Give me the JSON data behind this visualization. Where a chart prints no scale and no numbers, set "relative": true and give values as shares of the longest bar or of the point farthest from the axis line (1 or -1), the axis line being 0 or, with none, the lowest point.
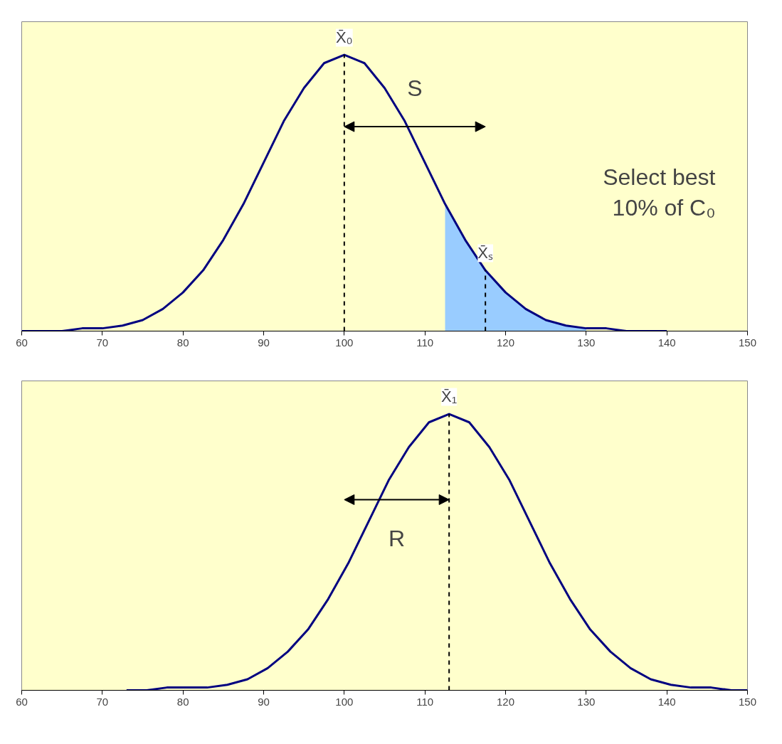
{
  "chart_data": [
    {
      "type": "line",
      "relative": true,
      "xlim": [
        60,
        150
      ],
      "xticks": [
        60,
        70,
        80,
        90,
        100,
        110,
        120,
        130,
        140,
        150
      ],
      "grid": false,
      "line_style": "solid",
      "marker": "none",
      "series": [
        {
          "type": "area",
          "color": "#99ccff",
          "x": [
            112.5,
            115,
            117.5,
            120,
            122.5,
            125,
            127.5,
            130
          ],
          "values": [
            0.46,
            0.33,
            0.22,
            0.14,
            0.08,
            0.04,
            0.02,
            0.01
          ]
        },
        {
          "type": "line",
          "color": "#000080",
          "x": [
            60,
            62.5,
            65,
            67.5,
            70,
            72.5,
            75,
            77.5,
            80,
            82.5,
            85,
            87.5,
            90,
            92.5,
            95,
            97.5,
            100,
            102.5,
            105,
            107.5,
            110,
            112.5,
            115,
            117.5,
            120,
            122.5,
            125,
            127.5,
            130,
            132.5,
            135,
            137.5,
            140
          ],
          "values": [
            0,
            0,
            0,
            0.01,
            0.01,
            0.02,
            0.04,
            0.08,
            0.14,
            0.22,
            0.33,
            0.46,
            0.61,
            0.76,
            0.88,
            0.97,
            1,
            0.97,
            0.88,
            0.76,
            0.61,
            0.46,
            0.33,
            0.22,
            0.14,
            0.08,
            0.04,
            0.02,
            0.01,
            0.01,
            0,
            0,
            0
          ]
        }
      ],
      "ref_lines": [
        {
          "axis": "x",
          "value": 100,
          "label": "X̄₀",
          "line_style": "dashed"
        },
        {
          "axis": "x",
          "value": 117.5,
          "label": "X̄ₛ",
          "line_style": "dashed"
        }
      ],
      "annotations": [
        "S",
        "Select best 10% of C₀"
      ]
    },
    {
      "type": "line",
      "relative": true,
      "xlim": [
        60,
        150
      ],
      "xticks": [
        60,
        70,
        80,
        90,
        100,
        110,
        120,
        130,
        140,
        150
      ],
      "grid": false,
      "line_style": "solid",
      "marker": "none",
      "series": [
        {
          "type": "line",
          "color": "#000080",
          "x": [
            73,
            75.5,
            78,
            80.5,
            83,
            85.5,
            88,
            90.5,
            93,
            95.5,
            98,
            100.5,
            103,
            105.5,
            108,
            110.5,
            113,
            115.5,
            118,
            120.5,
            123,
            125.5,
            128,
            130.5,
            133,
            135.5,
            138,
            140.5,
            143,
            145.5,
            148,
            150
          ],
          "values": [
            0,
            0,
            0.01,
            0.01,
            0.01,
            0.02,
            0.04,
            0.08,
            0.14,
            0.22,
            0.33,
            0.46,
            0.61,
            0.76,
            0.88,
            0.97,
            1,
            0.97,
            0.88,
            0.76,
            0.61,
            0.46,
            0.33,
            0.22,
            0.14,
            0.08,
            0.04,
            0.02,
            0.01,
            0.01,
            0,
            0
          ]
        }
      ],
      "ref_lines": [
        {
          "axis": "x",
          "value": 113,
          "label": "X̄₁",
          "line_style": "dashed"
        }
      ],
      "annotations": [
        "R"
      ]
    }
  ]
}
